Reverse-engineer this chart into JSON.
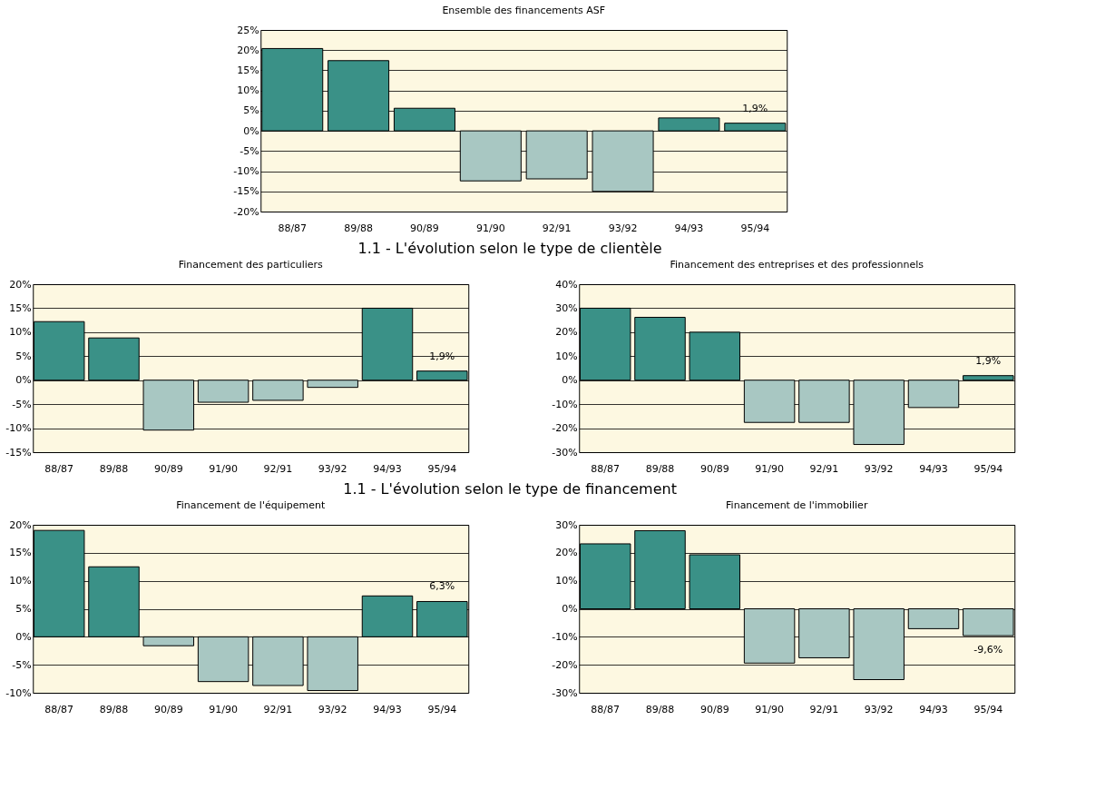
{
  "chart_data": [
    {
      "type": "bar",
      "title": "Ensemble des financements ASF",
      "categories": [
        "88/87",
        "89/88",
        "90/89",
        "91/90",
        "92/91",
        "93/92",
        "94/93",
        "95/94"
      ],
      "values": [
        20.4,
        17.4,
        5.6,
        -12.4,
        -11.9,
        -15,
        3.2,
        1.9
      ],
      "colors": [
        "#3a9187",
        "#3a9187",
        "#3a9187",
        "#a8c7c2",
        "#a8c7c2",
        "#a8c7c2",
        "#3a9187",
        "#3a9187"
      ],
      "value_labels": [
        null,
        null,
        null,
        null,
        null,
        null,
        null,
        "1,9%"
      ],
      "ylim": [
        -20,
        25
      ],
      "yticks": [
        {
          "value": -20,
          "label": "-20%"
        },
        {
          "value": -15,
          "label": "-15%"
        },
        {
          "value": -10,
          "label": "-10%"
        },
        {
          "value": -5,
          "label": "-5%"
        },
        {
          "value": 0,
          "label": "0%"
        },
        {
          "value": 5,
          "label": "5%"
        },
        {
          "value": 10,
          "label": "10%"
        },
        {
          "value": 15,
          "label": "15%"
        },
        {
          "value": 20,
          "label": "20%"
        },
        {
          "value": 25,
          "label": "25%"
        }
      ],
      "grid": "y"
    },
    {
      "type": "bar",
      "title": "Financement des particuliers",
      "annotations": [
        "1.1 - L'évolution selon le type de clientèle"
      ],
      "categories": [
        "88/87",
        "89/88",
        "90/89",
        "91/90",
        "92/91",
        "93/92",
        "94/93",
        "95/94"
      ],
      "values": [
        12.2,
        8.8,
        -10.4,
        -4.6,
        -4.2,
        -1.5,
        15.0,
        1.9
      ],
      "colors": [
        "#3a9187",
        "#3a9187",
        "#a8c7c2",
        "#a8c7c2",
        "#a8c7c2",
        "#a8c7c2",
        "#3a9187",
        "#3a9187"
      ],
      "value_labels": [
        null,
        null,
        null,
        null,
        null,
        null,
        null,
        "1,9%"
      ],
      "ylim": [
        -15,
        20
      ],
      "yticks": [
        {
          "value": -15,
          "label": "-15%"
        },
        {
          "value": -10,
          "label": "-10%"
        },
        {
          "value": -5,
          "label": "-5%"
        },
        {
          "value": 0,
          "label": "0%"
        },
        {
          "value": 5,
          "label": "5%"
        },
        {
          "value": 10,
          "label": "10%"
        },
        {
          "value": 15,
          "label": "15%"
        },
        {
          "value": 20,
          "label": "20%"
        }
      ],
      "grid": "y"
    },
    {
      "type": "bar",
      "title": "Financement des entreprises et des professionnels",
      "categories": [
        "88/87",
        "89/88",
        "90/89",
        "91/90",
        "92/91",
        "93/92",
        "94/93",
        "95/94"
      ],
      "values": [
        30,
        26.2,
        20,
        -17.6,
        -17.6,
        -26.8,
        -11.4,
        1.9
      ],
      "colors": [
        "#3a9187",
        "#3a9187",
        "#3a9187",
        "#a8c7c2",
        "#a8c7c2",
        "#a8c7c2",
        "#a8c7c2",
        "#3a9187"
      ],
      "value_labels": [
        null,
        null,
        null,
        null,
        null,
        null,
        null,
        "1,9%"
      ],
      "ylim": [
        -30,
        40
      ],
      "yticks": [
        {
          "value": -30,
          "label": "-30%"
        },
        {
          "value": -20,
          "label": "-20%"
        },
        {
          "value": -10,
          "label": "-10%"
        },
        {
          "value": 0,
          "label": "0%"
        },
        {
          "value": 10,
          "label": "10%"
        },
        {
          "value": 20,
          "label": "20%"
        },
        {
          "value": 30,
          "label": "30%"
        },
        {
          "value": 40,
          "label": "40%"
        }
      ],
      "grid": "y"
    },
    {
      "type": "bar",
      "title": "Financement de l'équipement",
      "annotations": [
        "1.1 - L'évolution selon le type de financement"
      ],
      "categories": [
        "88/87",
        "89/88",
        "90/89",
        "91/90",
        "92/91",
        "93/92",
        "94/93",
        "95/94"
      ],
      "values": [
        19,
        12.5,
        -1.6,
        -8,
        -8.7,
        -9.6,
        7.3,
        6.3
      ],
      "colors": [
        "#3a9187",
        "#3a9187",
        "#a8c7c2",
        "#a8c7c2",
        "#a8c7c2",
        "#a8c7c2",
        "#3a9187",
        "#3a9187"
      ],
      "value_labels": [
        null,
        null,
        null,
        null,
        null,
        null,
        null,
        "6,3%"
      ],
      "ylim": [
        -10,
        20
      ],
      "yticks": [
        {
          "value": -10,
          "label": "-10%"
        },
        {
          "value": -5,
          "label": "-5%"
        },
        {
          "value": 0,
          "label": "0%"
        },
        {
          "value": 5,
          "label": "5%"
        },
        {
          "value": 10,
          "label": "10%"
        },
        {
          "value": 15,
          "label": "15%"
        },
        {
          "value": 20,
          "label": "20%"
        }
      ],
      "grid": "y"
    },
    {
      "type": "bar",
      "title": "Financement de l'immobilier",
      "categories": [
        "88/87",
        "89/88",
        "90/89",
        "91/90",
        "92/91",
        "93/92",
        "94/93",
        "95/94"
      ],
      "values": [
        23.2,
        27.9,
        19.3,
        -19.4,
        -17.5,
        -25.3,
        -7.1,
        -9.6
      ],
      "colors": [
        "#3a9187",
        "#3a9187",
        "#3a9187",
        "#a8c7c2",
        "#a8c7c2",
        "#a8c7c2",
        "#a8c7c2",
        "#a8c7c2"
      ],
      "value_labels": [
        null,
        null,
        null,
        null,
        null,
        null,
        null,
        "-9,6%"
      ],
      "ylim": [
        -30,
        30
      ],
      "yticks": [
        {
          "value": -30,
          "label": "-30%"
        },
        {
          "value": -20,
          "label": "-20%"
        },
        {
          "value": -10,
          "label": "-10%"
        },
        {
          "value": 0,
          "label": "0%"
        },
        {
          "value": 10,
          "label": "10%"
        },
        {
          "value": 20,
          "label": "20%"
        },
        {
          "value": 30,
          "label": "30%"
        }
      ],
      "grid": "y"
    }
  ]
}
